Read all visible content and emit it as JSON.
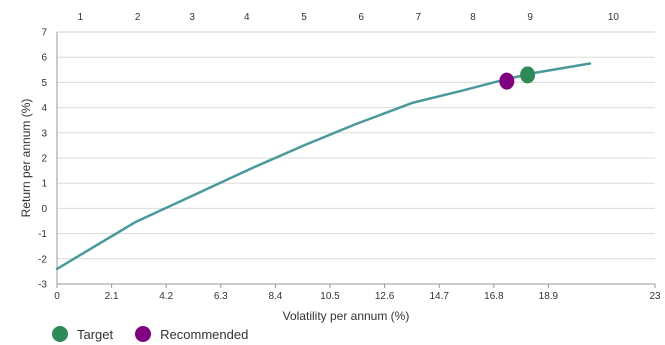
{
  "chart_data": {
    "type": "line",
    "xlabel": "Volatility per annum (%)",
    "ylabel": "Return per annum (%)",
    "xlim": [
      0,
      23
    ],
    "ylim": [
      -3,
      7
    ],
    "x_ticks": [
      "0",
      "2.1",
      "4.2",
      "6.3",
      "8.4",
      "10.5",
      "12.6",
      "14.7",
      "16.8",
      "18.9",
      "23"
    ],
    "x_tick_values": [
      0,
      2.1,
      4.2,
      6.3,
      8.4,
      10.5,
      12.6,
      14.7,
      16.8,
      18.9,
      23
    ],
    "y_ticks": [
      "7",
      "6",
      "5",
      "4",
      "3",
      "2",
      "1",
      "0",
      "-1",
      "-2",
      "-3"
    ],
    "y_tick_values": [
      7,
      6,
      5,
      4,
      3,
      2,
      1,
      0,
      -1,
      -2,
      -3
    ],
    "top_axis_ticks": [
      "1",
      "2",
      "3",
      "4",
      "5",
      "6",
      "7",
      "8",
      "9",
      "10"
    ],
    "top_axis_values": [
      0.9,
      3.1,
      5.2,
      7.3,
      9.5,
      11.7,
      13.9,
      16.0,
      18.2,
      21.4
    ],
    "grid": "horizontal",
    "line_color": "#4a9a9a",
    "series": [
      {
        "x": [
          0,
          3.0,
          5.0,
          7.5,
          9.5,
          11.5,
          13.7,
          15.5,
          17.0,
          18.2,
          20.5
        ],
        "values": [
          -2.4,
          -0.55,
          0.4,
          1.6,
          2.5,
          3.35,
          4.2,
          4.65,
          5.05,
          5.35,
          5.75
        ]
      }
    ],
    "points": [
      {
        "name": "Target",
        "x": 18.1,
        "y": 5.3,
        "color": "#2e8b57"
      },
      {
        "name": "Recommended",
        "x": 17.3,
        "y": 5.05,
        "color": "#800080"
      }
    ]
  },
  "legend": {
    "items": [
      {
        "label": "Target",
        "color": "#2e8b57"
      },
      {
        "label": "Recommended",
        "color": "#800080"
      }
    ]
  }
}
